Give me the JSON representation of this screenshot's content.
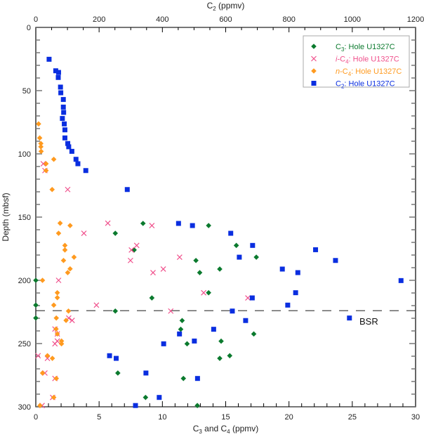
{
  "chart_data": {
    "type": "scatter",
    "top_axis": {
      "title": {
        "main": "C",
        "sub": "2",
        "suffix": " (ppmv)"
      },
      "range": [
        0,
        1200
      ],
      "ticks": [
        0,
        200,
        400,
        600,
        800,
        1000,
        1200
      ]
    },
    "bottom_axis": {
      "title": {
        "p1": "C",
        "s1": "3",
        "p2": " and C",
        "s2": "4",
        "p3": " (ppmv)"
      },
      "range": [
        0,
        30
      ],
      "ticks": [
        0,
        5,
        10,
        15,
        20,
        25,
        30
      ]
    },
    "y_axis": {
      "title": "Depth (mbsf)",
      "range": [
        0,
        300
      ],
      "inverted": true,
      "ticks": [
        0,
        50,
        100,
        150,
        200,
        250,
        300
      ]
    },
    "reference_line": {
      "label": "BSR",
      "depth": 224,
      "style": "dashed"
    },
    "legend_position": "top-right",
    "series": [
      {
        "key": "c3",
        "axis": "bottom",
        "marker": "diamond",
        "color": "#0b7a2e",
        "legend": {
          "italic": "",
          "main": "C",
          "sub": "3",
          "suffix": ": Hole U1327C"
        },
        "points": [
          [
            155,
            8.47
          ],
          [
            156.7,
            13.65
          ],
          [
            162.8,
            6.28
          ],
          [
            172.4,
            15.84
          ],
          [
            176,
            7.77
          ],
          [
            181.7,
            17.42
          ],
          [
            184.3,
            12.65
          ],
          [
            191.1,
            14.53
          ],
          [
            193.9,
            12.95
          ],
          [
            200,
            0
          ],
          [
            209.8,
            13.65
          ],
          [
            213.9,
            9.17
          ],
          [
            219.6,
            0
          ],
          [
            224.3,
            6.28
          ],
          [
            229.8,
            0
          ],
          [
            231.8,
            11.56
          ],
          [
            238.7,
            11.45
          ],
          [
            242.4,
            17.22
          ],
          [
            248.1,
            14.64
          ],
          [
            250.2,
            11.95
          ],
          [
            259.6,
            15.32
          ],
          [
            261.7,
            14.53
          ],
          [
            273.3,
            6.48
          ],
          [
            277.6,
            11.66
          ],
          [
            292.6,
            8.67
          ],
          [
            299,
            12.76
          ]
        ]
      },
      {
        "key": "ic4",
        "axis": "bottom",
        "marker": "x",
        "color": "#f0508c",
        "legend": {
          "italic": "i",
          "main": "-C",
          "sub": "4",
          "suffix": ": Hole U1327C"
        },
        "points": [
          [
            107.8,
            0.59
          ],
          [
            113.2,
            0.72
          ],
          [
            128.2,
            2.52
          ],
          [
            154.8,
            5.69
          ],
          [
            156.7,
            9.17
          ],
          [
            162.8,
            3.8
          ],
          [
            172.4,
            7.97
          ],
          [
            176,
            7.55
          ],
          [
            181.7,
            11.36
          ],
          [
            184.3,
            7.48
          ],
          [
            191.1,
            10.07
          ],
          [
            193.9,
            9.26
          ],
          [
            200,
            1.8
          ],
          [
            209.8,
            13.26
          ],
          [
            213.9,
            16.75
          ],
          [
            219.6,
            4.79
          ],
          [
            224.3,
            10.66
          ],
          [
            229.8,
            2.6
          ],
          [
            231.7,
            2.87
          ],
          [
            238.5,
            1.51
          ],
          [
            242.4,
            1.7
          ],
          [
            248,
            1.7
          ],
          [
            250.2,
            1.51
          ],
          [
            259.6,
            0.18
          ],
          [
            261.7,
            0.92
          ],
          [
            273.3,
            0.72
          ],
          [
            277.6,
            1.51
          ],
          [
            292.6,
            1.33
          ],
          [
            299,
            0.5
          ]
        ]
      },
      {
        "key": "nc4",
        "axis": "bottom",
        "marker": "diamond",
        "color": "#ff9a1f",
        "legend": {
          "italic": "n",
          "main": "-C",
          "sub": "4",
          "suffix": ": Hole U1327C"
        },
        "points": [
          [
            76.3,
            0.22
          ],
          [
            87.4,
            0.31
          ],
          [
            91.8,
            0.4
          ],
          [
            94.4,
            0.4
          ],
          [
            98,
            0.42
          ],
          [
            104.3,
            1.42
          ],
          [
            107.8,
            0.81
          ],
          [
            113.2,
            0.81
          ],
          [
            128.2,
            1.29
          ],
          [
            154.8,
            1.92
          ],
          [
            156.7,
            2.71
          ],
          [
            162.8,
            1.8
          ],
          [
            172.4,
            2.3
          ],
          [
            176,
            2.3
          ],
          [
            181.7,
            3.02
          ],
          [
            184.3,
            2.19
          ],
          [
            190.9,
            2.71
          ],
          [
            193.9,
            2.52
          ],
          [
            200,
            0.53
          ],
          [
            209.8,
            1.7
          ],
          [
            213.7,
            1.7
          ],
          [
            219.6,
            1.42
          ],
          [
            224.3,
            2.58
          ],
          [
            229.8,
            1.62
          ],
          [
            231.7,
            2.39
          ],
          [
            238.5,
            1.6
          ],
          [
            242.4,
            1.7
          ],
          [
            248,
            2.03
          ],
          [
            250.2,
            2.03
          ],
          [
            259.6,
            0.92
          ],
          [
            261.7,
            1.31
          ],
          [
            273.3,
            0.53
          ],
          [
            277.6,
            1.62
          ],
          [
            292.6,
            1.42
          ],
          [
            299,
            0.33
          ]
        ]
      },
      {
        "key": "c2",
        "axis": "top",
        "marker": "square",
        "color": "#0a2ee0",
        "legend": {
          "italic": "",
          "main": "C",
          "sub": "2",
          "suffix": ": Hole U1327C"
        },
        "points": [
          [
            25.2,
            42
          ],
          [
            34.3,
            63
          ],
          [
            35.6,
            72
          ],
          [
            39.6,
            71
          ],
          [
            47.2,
            78
          ],
          [
            51.7,
            79
          ],
          [
            57,
            87
          ],
          [
            63,
            87
          ],
          [
            67.2,
            88
          ],
          [
            72,
            84
          ],
          [
            76.3,
            90
          ],
          [
            81,
            92
          ],
          [
            87.4,
            92
          ],
          [
            91.8,
            101
          ],
          [
            94.4,
            104
          ],
          [
            98,
            114
          ],
          [
            104.3,
            127
          ],
          [
            107.8,
            133
          ],
          [
            113.2,
            158
          ],
          [
            128.2,
            289
          ],
          [
            155,
            451
          ],
          [
            156.7,
            495
          ],
          [
            162.8,
            616
          ],
          [
            172.4,
            685
          ],
          [
            175.8,
            884
          ],
          [
            181.7,
            643
          ],
          [
            184.3,
            947
          ],
          [
            191.1,
            779
          ],
          [
            193.9,
            828
          ],
          [
            200.2,
            1154
          ],
          [
            209.8,
            821
          ],
          [
            213.9,
            684
          ],
          [
            219.6,
            796
          ],
          [
            224.3,
            621
          ],
          [
            229.8,
            991
          ],
          [
            231.8,
            663
          ],
          [
            238.7,
            562
          ],
          [
            242.4,
            454
          ],
          [
            248,
            501
          ],
          [
            250.2,
            404
          ],
          [
            259.6,
            233
          ],
          [
            261.7,
            254
          ],
          [
            273.3,
            348
          ],
          [
            277.6,
            511
          ],
          [
            292.6,
            390
          ],
          [
            299,
            315
          ]
        ]
      }
    ]
  }
}
